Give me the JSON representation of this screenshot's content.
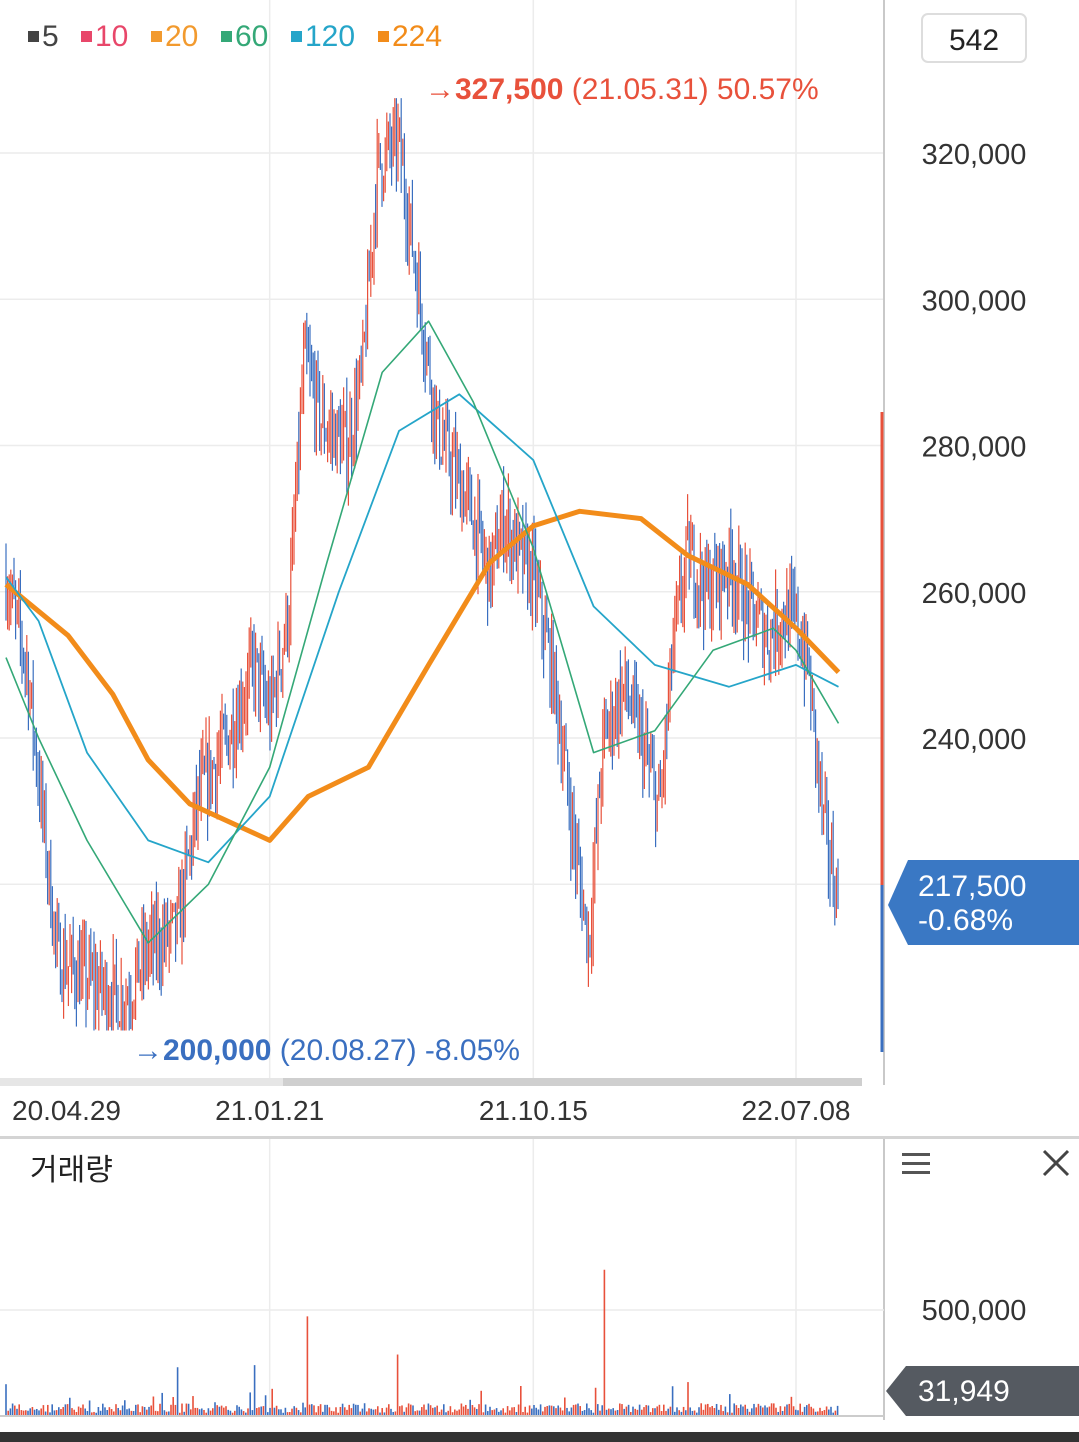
{
  "toolbar": {
    "period_value": "542",
    "legend": [
      {
        "label": "5",
        "color": "#444444"
      },
      {
        "label": "10",
        "color": "#e8476a"
      },
      {
        "label": "20",
        "color": "#f29a2e"
      },
      {
        "label": "60",
        "color": "#34a877"
      },
      {
        "label": "120",
        "color": "#25a5c9"
      },
      {
        "label": "224",
        "color": "#f28c1a"
      }
    ]
  },
  "colors": {
    "up": "#e8513b",
    "down": "#3a6fc0",
    "grid": "#ececec",
    "badge_price": "#3a78c4",
    "badge_volume": "#555a61"
  },
  "price_panel": {
    "high_marker": {
      "arrow": "→",
      "price": "327,500",
      "date": "(21.05.31)",
      "pct": "50.57%"
    },
    "low_marker": {
      "arrow": "→",
      "price": "200,000",
      "date": "(20.08.27)",
      "pct": "-8.05%"
    },
    "current_price": "217,500",
    "current_change": "-0.68%"
  },
  "volume_panel": {
    "title": "거래량",
    "current_volume": "31,949",
    "menu_icon": "hamburger-icon",
    "close_icon": "close-icon"
  },
  "chart_data": [
    {
      "type": "candlestick",
      "title": "",
      "x_ticks": [
        "20.04.29",
        "21.01.21",
        "21.10.15",
        "22.07.08"
      ],
      "y_ticks": [
        "240,000",
        "260,000",
        "280,000",
        "300,000",
        "320,000"
      ],
      "ylim": [
        200000,
        327500
      ],
      "grid": true,
      "max": {
        "value": 327500,
        "date": "21.05.31"
      },
      "min": {
        "value": 200000,
        "date": "20.08.27"
      },
      "last": 217500,
      "close_path": [
        [
          "20.04.29",
          262000
        ],
        [
          "20.05.20",
          250000
        ],
        [
          "20.06.20",
          210000
        ],
        [
          "20.07.20",
          207000
        ],
        [
          "20.08.27",
          204000
        ],
        [
          "20.09.20",
          211000
        ],
        [
          "20.10.20",
          214000
        ],
        [
          "20.11.10",
          232000
        ],
        [
          "20.12.10",
          240000
        ],
        [
          "21.01.05",
          250000
        ],
        [
          "21.01.21",
          243000
        ],
        [
          "21.02.10",
          258000
        ],
        [
          "21.02.25",
          292000
        ],
        [
          "21.03.15",
          283000
        ],
        [
          "21.04.10",
          280000
        ],
        [
          "21.04.25",
          290000
        ],
        [
          "21.05.10",
          318000
        ],
        [
          "21.05.31",
          322000
        ],
        [
          "21.06.20",
          302000
        ],
        [
          "21.07.10",
          282000
        ],
        [
          "21.08.10",
          272000
        ],
        [
          "21.09.01",
          262000
        ],
        [
          "21.09.15",
          270000
        ],
        [
          "21.10.01",
          265000
        ],
        [
          "21.10.15",
          262000
        ],
        [
          "21.11.05",
          248000
        ],
        [
          "21.11.25",
          226000
        ],
        [
          "21.12.10",
          212000
        ],
        [
          "21.12.25",
          240000
        ],
        [
          "22.01.15",
          247000
        ],
        [
          "22.02.01",
          240000
        ],
        [
          "22.02.20",
          230000
        ],
        [
          "22.03.05",
          252000
        ],
        [
          "22.03.20",
          265000
        ],
        [
          "22.04.10",
          260000
        ],
        [
          "22.05.01",
          264000
        ],
        [
          "22.05.20",
          258000
        ],
        [
          "22.06.10",
          254000
        ],
        [
          "22.06.25",
          257000
        ],
        [
          "22.07.08",
          256000
        ],
        [
          "22.07.20",
          250000
        ],
        [
          "22.08.05",
          228000
        ],
        [
          "22.08.20",
          217500
        ]
      ],
      "series": [
        {
          "name": "224",
          "values": [
            [
              "20.04.29",
              261000
            ],
            [
              "20.07.01",
              254000
            ],
            [
              "20.08.15",
              246000
            ],
            [
              "20.09.20",
              237000
            ],
            [
              "20.11.01",
              231000
            ],
            [
              "21.01.05",
              227000
            ],
            [
              "21.01.21",
              226000
            ],
            [
              "21.03.01",
              232000
            ],
            [
              "21.05.01",
              236000
            ],
            [
              "21.07.01",
              250000
            ],
            [
              "21.09.01",
              264000
            ],
            [
              "21.10.15",
              269000
            ],
            [
              "21.12.01",
              271000
            ],
            [
              "22.02.01",
              270000
            ],
            [
              "22.03.20",
              265000
            ],
            [
              "22.05.20",
              261000
            ],
            [
              "22.07.08",
              255000
            ],
            [
              "22.08.20",
              249000
            ]
          ]
        },
        {
          "name": "120",
          "values": [
            [
              "20.04.29",
              262000
            ],
            [
              "20.06.01",
              256000
            ],
            [
              "20.07.20",
              238000
            ],
            [
              "20.09.20",
              226000
            ],
            [
              "20.11.20",
              223000
            ],
            [
              "21.01.21",
              232000
            ],
            [
              "21.04.01",
              260000
            ],
            [
              "21.06.01",
              282000
            ],
            [
              "21.08.01",
              287000
            ],
            [
              "21.10.15",
              278000
            ],
            [
              "21.12.15",
              258000
            ],
            [
              "22.02.15",
              250000
            ],
            [
              "22.05.01",
              247000
            ],
            [
              "22.07.08",
              250000
            ],
            [
              "22.08.20",
              247000
            ]
          ]
        },
        {
          "name": "60",
          "values": [
            [
              "20.04.29",
              251000
            ],
            [
              "20.06.01",
              240000
            ],
            [
              "20.07.20",
              226000
            ],
            [
              "20.09.20",
              212000
            ],
            [
              "20.11.20",
              220000
            ],
            [
              "21.01.21",
              236000
            ],
            [
              "21.03.20",
              264000
            ],
            [
              "21.05.15",
              290000
            ],
            [
              "21.07.01",
              297000
            ],
            [
              "21.08.15",
              286000
            ],
            [
              "21.10.15",
              266000
            ],
            [
              "21.12.15",
              238000
            ],
            [
              "22.02.15",
              241000
            ],
            [
              "22.04.15",
              252000
            ],
            [
              "22.06.15",
              255000
            ],
            [
              "22.07.08",
              252000
            ],
            [
              "22.08.20",
              242000
            ]
          ]
        }
      ]
    },
    {
      "type": "bar",
      "title": "거래량",
      "y_ticks": [
        "500,000"
      ],
      "grid": true,
      "last": 31949,
      "spikes": [
        [
          "20.04.29",
          150000
        ],
        [
          "20.10.20",
          230000
        ],
        [
          "21.01.05",
          240000
        ],
        [
          "21.03.01",
          470000
        ],
        [
          "21.05.31",
          290000
        ],
        [
          "21.12.25",
          690000
        ],
        [
          "22.03.20",
          160000
        ]
      ]
    }
  ]
}
